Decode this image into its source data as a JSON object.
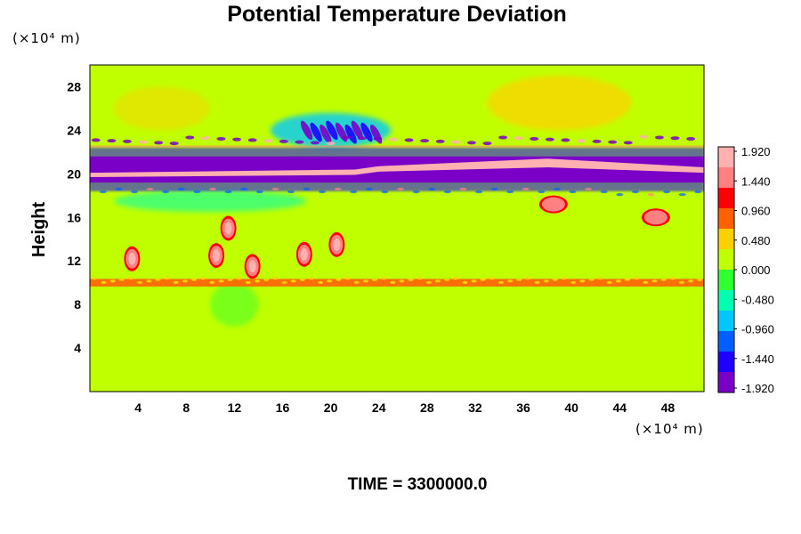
{
  "chart_data": {
    "type": "heatmap",
    "title": "Potential Temperature Deviation",
    "xlabel": "",
    "ylabel": "Height",
    "x_unit": "(×10⁴ m)",
    "y_unit": "(×10⁴ m)",
    "x_ticks": [
      4,
      8,
      12,
      16,
      20,
      24,
      28,
      32,
      36,
      40,
      44,
      48
    ],
    "y_ticks": [
      4,
      8,
      12,
      16,
      20,
      24,
      28
    ],
    "xlim": [
      0,
      51
    ],
    "ylim": [
      0,
      30
    ],
    "colorbar": {
      "ticks": [
        "1.920",
        "1.440",
        "0.960",
        "0.480",
        "0.000",
        "-0.480",
        "-0.960",
        "-1.440",
        "-1.920"
      ],
      "range": [
        -1.92,
        1.92
      ],
      "colors": [
        "#7a00c8",
        "#1e00ff",
        "#0060ff",
        "#00c8ff",
        "#00ffb0",
        "#30ff30",
        "#c0ff00",
        "#ffd000",
        "#ff6000",
        "#ff0000",
        "#ff8080",
        "#ffb0b0"
      ]
    },
    "features": {
      "background_value": 0.0,
      "upper_band": {
        "x_range": [
          0,
          51
        ],
        "y_center": 20.4,
        "value": -1.9
      },
      "upper_band_core": {
        "x_range": [
          0,
          51
        ],
        "y_center": 20.5,
        "value": 1.9
      },
      "lower_layer": {
        "x_range": [
          0,
          51
        ],
        "y_center": 10,
        "value": 0.9
      },
      "convective_cells": [
        {
          "x": 3.5,
          "y": 12.2,
          "value": 1.92
        },
        {
          "x": 10.5,
          "y": 12.5,
          "value": 1.92
        },
        {
          "x": 11.5,
          "y": 15,
          "value": 1.92
        },
        {
          "x": 13.5,
          "y": 11.5,
          "value": 1.92
        },
        {
          "x": 17.8,
          "y": 12.6,
          "value": 1.92
        },
        {
          "x": 20.5,
          "y": 13.5,
          "value": 1.92
        },
        {
          "x": 38.5,
          "y": 17.2,
          "value": 1.44
        },
        {
          "x": 47,
          "y": 16,
          "value": 1.44
        }
      ],
      "cold_wave_region": {
        "x_range": [
          17,
          24
        ],
        "y_range": [
          22,
          25.5
        ],
        "value": -1.44
      },
      "warm_region": {
        "x_range": [
          36,
          42
        ],
        "y_range": [
          25,
          28
        ],
        "value": 0.48
      }
    }
  },
  "time_label": "TIME = 3300000.0"
}
